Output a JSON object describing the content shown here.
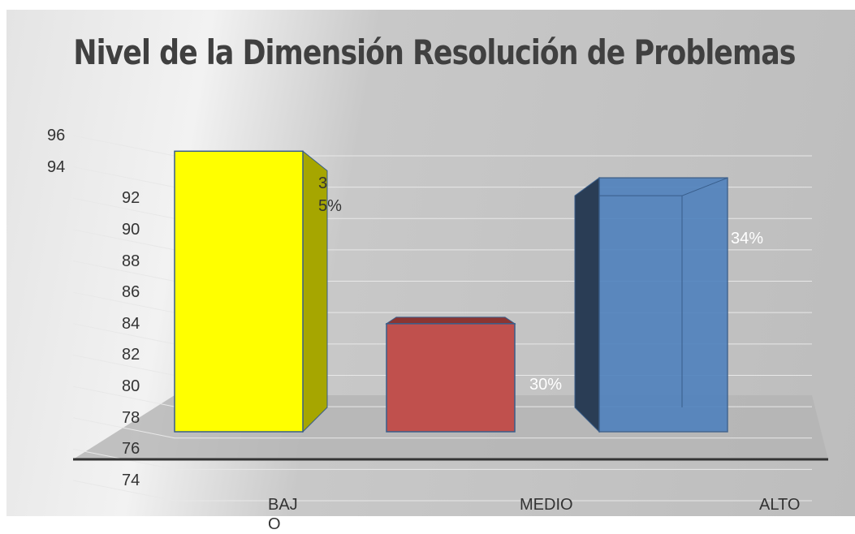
{
  "chart_data": {
    "type": "bar3d",
    "title": "Nivel de la Dimensión Resolución de Problemas",
    "categories": [
      "BAJO",
      "MEDIO",
      "ALTO"
    ],
    "values": [
      95,
      84,
      93.3
    ],
    "data_labels": [
      "35%",
      "30%",
      "34%"
    ],
    "colors": [
      "#ffff00",
      "#c0504d",
      "#4f81bd"
    ],
    "ylim": [
      74,
      96
    ],
    "yticks": [
      74,
      76,
      78,
      80,
      82,
      84,
      86,
      88,
      90,
      92,
      94,
      96
    ],
    "grid": true
  }
}
